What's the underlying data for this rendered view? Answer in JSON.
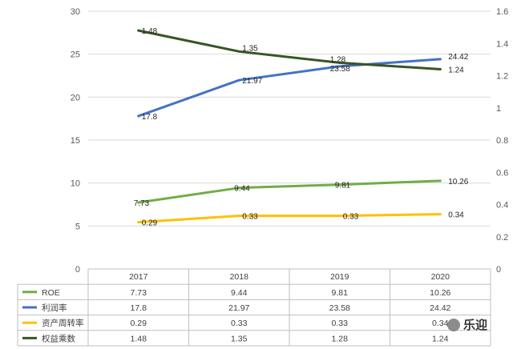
{
  "chart_data": {
    "type": "line",
    "categories": [
      "2017",
      "2018",
      "2019",
      "2020"
    ],
    "y_left": {
      "ticks": [
        "0",
        "5",
        "10",
        "15",
        "20",
        "25",
        "30"
      ],
      "lim": [
        0,
        30
      ]
    },
    "y_right": {
      "ticks": [
        "0",
        "0.2",
        "0.4",
        "0.6",
        "0.8",
        "1",
        "1.2",
        "1.4",
        "1.6"
      ],
      "lim": [
        0,
        1.6
      ]
    },
    "grid": true,
    "legend": "data-table-below",
    "series": [
      {
        "name": "ROE",
        "axis": "left",
        "color": "#70ad47",
        "values": [
          7.73,
          9.44,
          9.81,
          10.26
        ],
        "labels": [
          "7.73",
          "9.44",
          "9.81",
          "10.26"
        ]
      },
      {
        "name": "利润率",
        "axis": "left",
        "color": "#4472c4",
        "values": [
          17.8,
          21.97,
          23.58,
          24.42
        ],
        "labels": [
          "17.8",
          "21.97",
          "23.58",
          "24.42"
        ]
      },
      {
        "name": "资产周转率",
        "axis": "right",
        "color": "#ffc000",
        "values": [
          0.29,
          0.33,
          0.33,
          0.34
        ],
        "labels": [
          "0.29",
          "0.33",
          "0.33",
          "0.34"
        ]
      },
      {
        "name": "权益乘数",
        "axis": "right",
        "color": "#375623",
        "values": [
          1.48,
          1.35,
          1.28,
          1.24
        ],
        "labels": [
          "1.48",
          "1.35",
          "1.28",
          "1.24"
        ]
      }
    ]
  },
  "watermark": {
    "text": "乐迎"
  }
}
